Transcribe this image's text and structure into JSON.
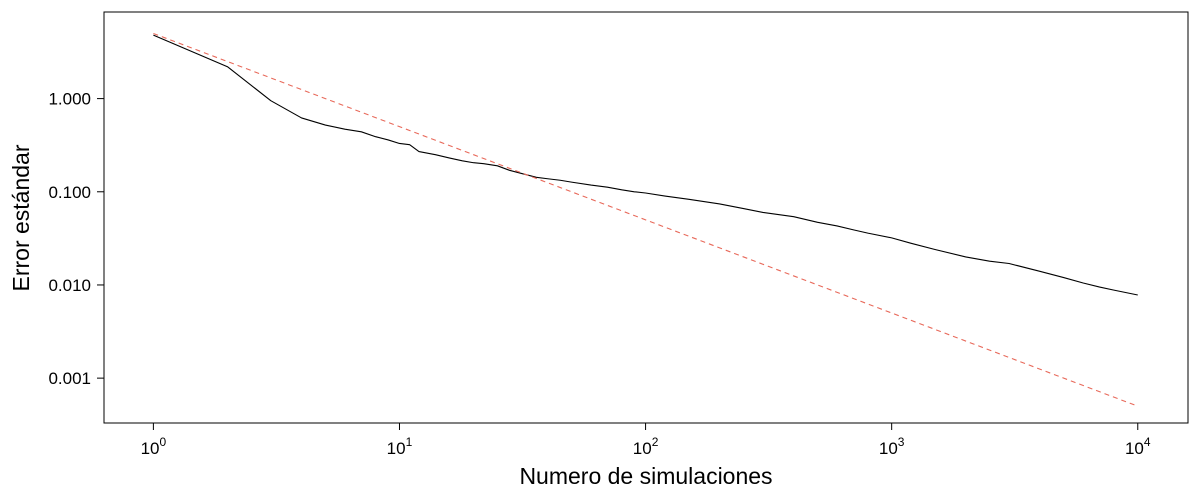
{
  "chart_data": {
    "type": "line",
    "title": "",
    "xlabel": "Numero de simulaciones",
    "ylabel": "Error estándar",
    "x_scale": "log10",
    "y_scale": "log10",
    "xlim": [
      0.63,
      16000
    ],
    "ylim": [
      0.00033,
      8.5
    ],
    "x_ticks": [
      {
        "value": 1,
        "base": "10",
        "exp": "0"
      },
      {
        "value": 10,
        "base": "10",
        "exp": "1"
      },
      {
        "value": 100,
        "base": "10",
        "exp": "2"
      },
      {
        "value": 1000,
        "base": "10",
        "exp": "3"
      },
      {
        "value": 10000,
        "base": "10",
        "exp": "4"
      }
    ],
    "y_ticks": [
      {
        "value": 1,
        "label": "1.000"
      },
      {
        "value": 0.1,
        "label": "0.100"
      },
      {
        "value": 0.01,
        "label": "0.010"
      },
      {
        "value": 0.001,
        "label": "0.001"
      }
    ],
    "grid": false,
    "legend": "none",
    "series": [
      {
        "style": "solid",
        "color": "#000000",
        "points": [
          [
            1,
            4.8
          ],
          [
            2,
            2.2
          ],
          [
            3,
            0.95
          ],
          [
            4,
            0.62
          ],
          [
            5,
            0.52
          ],
          [
            6,
            0.47
          ],
          [
            7,
            0.44
          ],
          [
            8,
            0.39
          ],
          [
            9,
            0.36
          ],
          [
            10,
            0.33
          ],
          [
            11,
            0.32
          ],
          [
            12,
            0.27
          ],
          [
            14,
            0.25
          ],
          [
            16,
            0.23
          ],
          [
            18,
            0.215
          ],
          [
            20,
            0.205
          ],
          [
            22,
            0.2
          ],
          [
            25,
            0.19
          ],
          [
            28,
            0.17
          ],
          [
            32,
            0.155
          ],
          [
            36,
            0.143
          ],
          [
            40,
            0.138
          ],
          [
            45,
            0.133
          ],
          [
            50,
            0.127
          ],
          [
            60,
            0.118
          ],
          [
            70,
            0.112
          ],
          [
            80,
            0.105
          ],
          [
            90,
            0.1
          ],
          [
            100,
            0.097
          ],
          [
            120,
            0.09
          ],
          [
            150,
            0.083
          ],
          [
            200,
            0.074
          ],
          [
            250,
            0.066
          ],
          [
            300,
            0.06
          ],
          [
            400,
            0.054
          ],
          [
            500,
            0.047
          ],
          [
            600,
            0.043
          ],
          [
            700,
            0.039
          ],
          [
            800,
            0.036
          ],
          [
            1000,
            0.032
          ],
          [
            1200,
            0.028
          ],
          [
            1500,
            0.024
          ],
          [
            2000,
            0.02
          ],
          [
            2500,
            0.018
          ],
          [
            3000,
            0.017
          ],
          [
            4000,
            0.014
          ],
          [
            5000,
            0.012
          ],
          [
            6000,
            0.0105
          ],
          [
            7000,
            0.0095
          ],
          [
            8000,
            0.0088
          ],
          [
            10000,
            0.0078
          ]
        ]
      },
      {
        "style": "dashed",
        "color": "#e8695a",
        "points": [
          [
            1,
            5.0
          ],
          [
            10000,
            0.0005
          ]
        ]
      }
    ]
  }
}
